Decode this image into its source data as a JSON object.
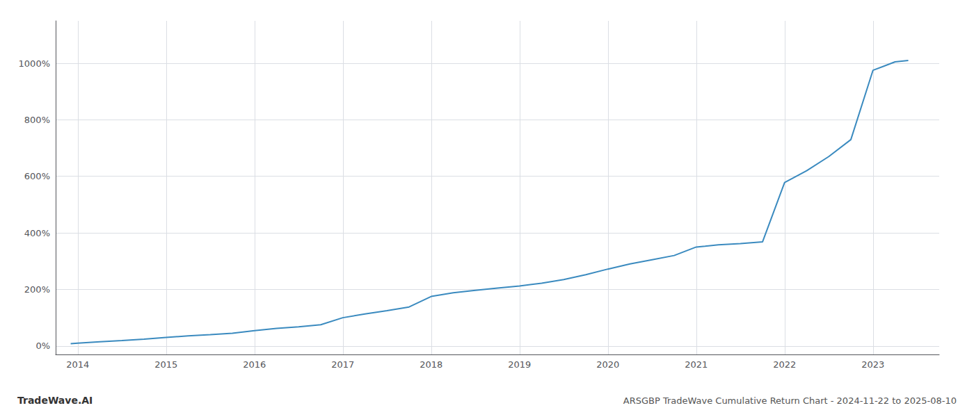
{
  "chart_data": {
    "type": "line",
    "title": "ARSGBP TradeWave Cumulative Return Chart - 2024-11-22 to 2025-08-10",
    "annotations": [
      {
        "text": "TradeWave.AI"
      }
    ],
    "x": [
      2013.92,
      2014.0,
      2014.25,
      2014.5,
      2014.75,
      2015.0,
      2015.25,
      2015.5,
      2015.75,
      2016.0,
      2016.25,
      2016.5,
      2016.75,
      2017.0,
      2017.25,
      2017.5,
      2017.75,
      2018.0,
      2018.25,
      2018.5,
      2018.75,
      2019.0,
      2019.25,
      2019.5,
      2019.75,
      2020.0,
      2020.25,
      2020.5,
      2020.75,
      2021.0,
      2021.1,
      2021.25,
      2021.5,
      2021.75,
      2022.0,
      2022.25,
      2022.5,
      2022.75,
      2023.0,
      2023.25,
      2023.4
    ],
    "values": [
      8,
      10,
      15,
      19,
      24,
      30,
      36,
      40,
      45,
      54,
      62,
      68,
      75,
      100,
      113,
      125,
      138,
      175,
      188,
      197,
      205,
      212,
      222,
      235,
      252,
      272,
      290,
      305,
      320,
      350,
      353,
      358,
      362,
      368,
      578,
      620,
      670,
      730,
      975,
      1005,
      1010
    ],
    "color": "#3a8abf",
    "xlim": [
      2013.75,
      2023.75
    ],
    "xticks": [
      2014,
      2015,
      2016,
      2017,
      2018,
      2019,
      2020,
      2021,
      2022,
      2023
    ],
    "ylim": [
      -30,
      1150
    ],
    "yticks": [
      {
        "value": 0,
        "label": "0%"
      },
      {
        "value": 200,
        "label": "200%"
      },
      {
        "value": 400,
        "label": "400%"
      },
      {
        "value": 600,
        "label": "600%"
      },
      {
        "value": 800,
        "label": "800%"
      },
      {
        "value": 1000,
        "label": "1000%"
      }
    ],
    "grid": true
  }
}
